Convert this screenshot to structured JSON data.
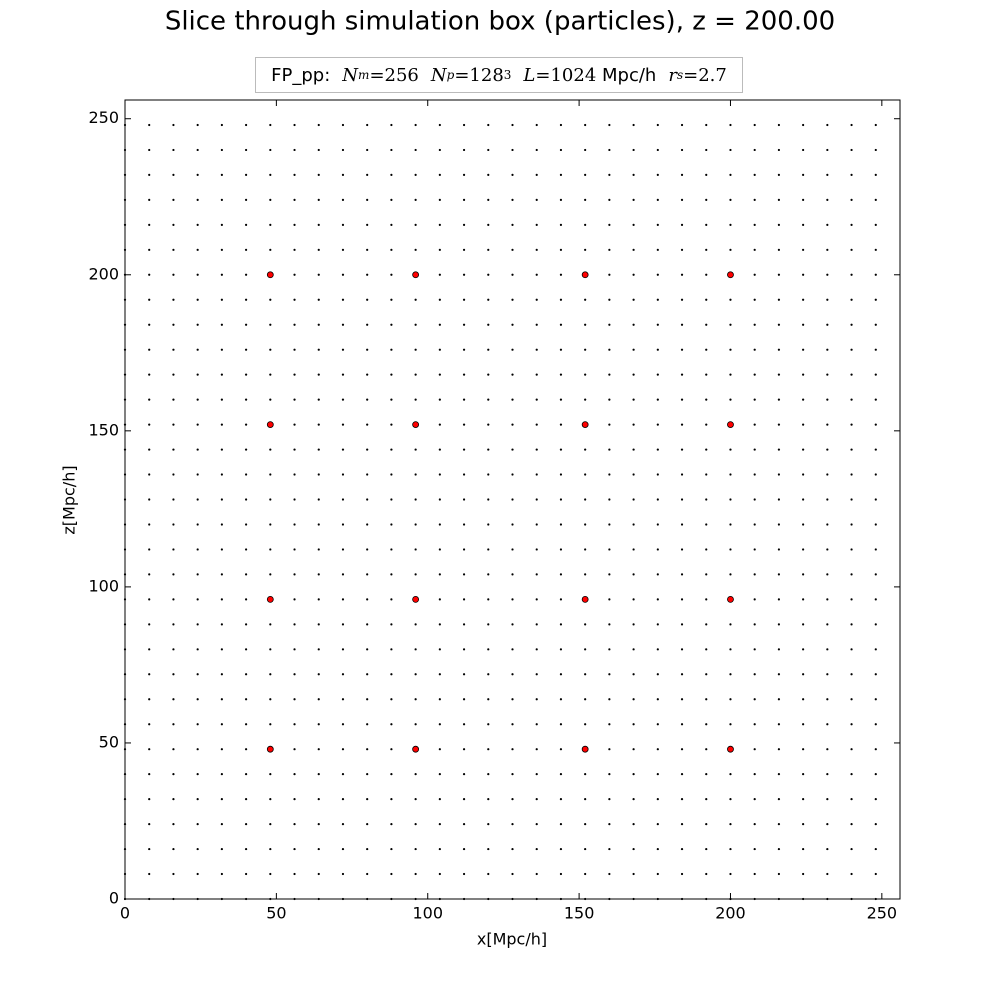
{
  "chart_data": {
    "type": "scatter",
    "title": "Slice through simulation box (particles), z = 200.00",
    "subtitle_parts": [
      "FP_pp:",
      "N",
      "m",
      "=256",
      "N",
      "p",
      "=128",
      "3",
      "L",
      "=1024",
      "Mpc/h",
      "r",
      "s",
      "=2.7"
    ],
    "xlabel": "x[Mpc/h]",
    "ylabel": "z[Mpc/h]",
    "xlim": [
      0,
      256
    ],
    "ylim": [
      0,
      256
    ],
    "xticks": [
      0,
      50,
      100,
      150,
      200,
      250
    ],
    "yticks": [
      0,
      50,
      100,
      150,
      200,
      250
    ],
    "series": [
      {
        "color": "#000000",
        "lattice": true,
        "x": [
          0,
          8,
          16,
          24,
          32,
          40,
          48,
          56,
          64,
          72,
          80,
          88,
          96,
          104,
          112,
          120,
          128,
          136,
          144,
          152,
          160,
          168,
          176,
          184,
          192,
          200,
          208,
          216,
          224,
          232,
          240,
          248
        ],
        "y": [
          0,
          8,
          16,
          24,
          32,
          40,
          48,
          56,
          64,
          72,
          80,
          88,
          96,
          104,
          112,
          120,
          128,
          136,
          144,
          152,
          160,
          168,
          176,
          184,
          192,
          200,
          208,
          216,
          224,
          232,
          240,
          248
        ]
      },
      {
        "color": "#ff0000",
        "lattice": true,
        "x": [
          48,
          96,
          152,
          200
        ],
        "y": [
          48,
          96,
          152,
          200
        ]
      }
    ]
  }
}
